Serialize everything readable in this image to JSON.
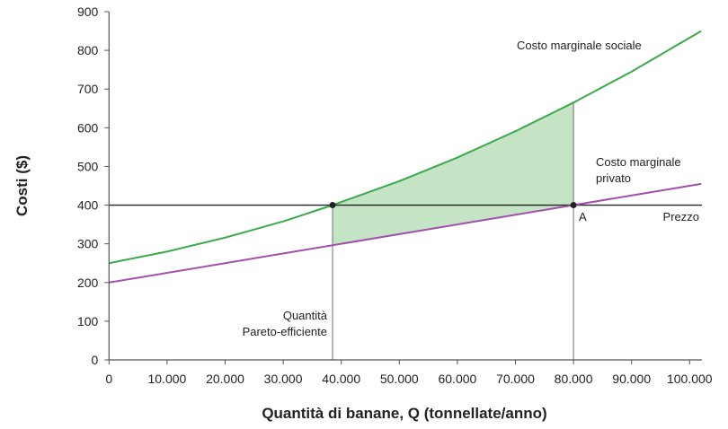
{
  "chart_data": {
    "type": "line",
    "xlabel": "Quantità di banane, Q (tonnellate/anno)",
    "ylabel": "Costi ($)",
    "xlim": [
      0,
      102000
    ],
    "ylim": [
      0,
      900
    ],
    "xticks": [
      0,
      10000,
      20000,
      30000,
      40000,
      50000,
      60000,
      70000,
      80000,
      90000,
      100000
    ],
    "xtick_labels": [
      "0",
      "10.000",
      "20.000",
      "30.000",
      "40.000",
      "50.000",
      "60.000",
      "70.000",
      "80.000",
      "90.000",
      "100.000"
    ],
    "yticks": [
      0,
      100,
      200,
      300,
      400,
      500,
      600,
      700,
      800,
      900
    ],
    "ytick_labels": [
      "0",
      "100",
      "200",
      "300",
      "400",
      "500",
      "600",
      "700",
      "800",
      "900"
    ],
    "grid": false,
    "series": [
      {
        "name": "Costo marginale sociale",
        "color": "#3aaa4a",
        "x": [
          0,
          10000,
          20000,
          30000,
          38500,
          50000,
          60000,
          70000,
          80000,
          90000,
          102000
        ],
        "y": [
          250,
          280,
          316,
          358,
          400,
          462,
          523,
          591,
          665,
          745,
          850
        ]
      },
      {
        "name": "Costo marginale privato",
        "color": "#a050a8",
        "x": [
          0,
          102000
        ],
        "y": [
          200,
          455
        ]
      }
    ],
    "price_line": {
      "label": "Prezzo",
      "y": 400,
      "color": "#222222"
    },
    "annotations": [
      {
        "text": "Quantità",
        "text2": "Pareto-efficiente",
        "x": 38500
      },
      {
        "text": "A",
        "x": 80000,
        "y": 400
      }
    ],
    "shaded_area": {
      "color": "#c5e4c5",
      "x_from": 38500,
      "x_to": 80000
    }
  }
}
